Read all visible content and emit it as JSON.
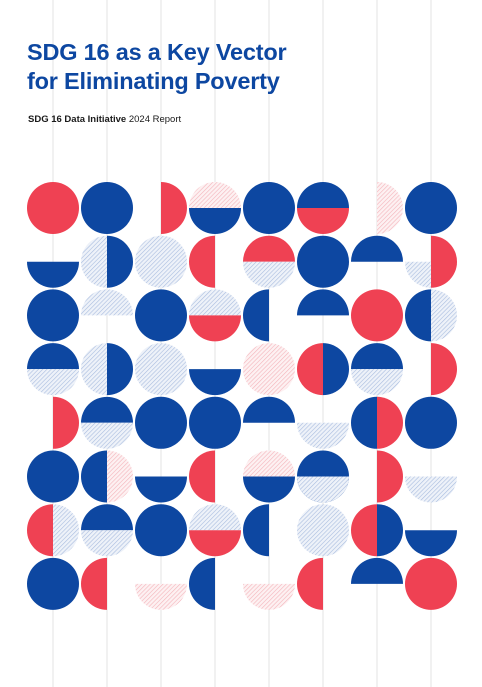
{
  "report": {
    "title_line1": "SDG 16 as a Key Vector",
    "title_line2": "for Eliminating Poverty",
    "initiative": "SDG 16 Data Initiative",
    "report_label": " 2024 Report"
  },
  "colors": {
    "blue": "#0d47a1",
    "red": "#ef4153",
    "light_blue": "#c9d5ea",
    "light_red": "#f6c3c8",
    "grid_line": "#dcdcdc"
  },
  "pattern_shapes": [
    "c R 0 0",
    "c B 1 0",
    "hr R 2 0",
    "t P 3 0",
    "b B 3 0",
    "c B 4 0",
    "t B 5 0",
    "b R 5 0",
    "hr P 6 0",
    "c B 7 0",
    "b B 0 1",
    "hl L 1 1",
    "hr B 1 1",
    "c L 2 1",
    "hl R 3 1",
    "t R 4 1",
    "b L 4 1",
    "c B 5 1",
    "t B 6 1",
    "b L 7 1",
    "hr R 7 1",
    "c B 0 2",
    "t L 1 2",
    "c B 2 2",
    "t L 3 2",
    "b R 3 2",
    "hl B 4 2",
    "t B 5 2",
    "c R 6 2",
    "hl B 7 2",
    "hr L 7 2",
    "t B 0 3",
    "b L 0 3",
    "hl L 1 3",
    "hr B 1 3",
    "c L 2 3",
    "b B 3 3",
    "c P 4 3",
    "hl R 5 3",
    "hr B 5 3",
    "t B 6 3",
    "b L 6 3",
    "hr R 7 3",
    "hr R 0 4",
    "t B 1 4",
    "b L 1 4",
    "c B 2 4",
    "c B 3 4",
    "t B 4 4",
    "b L 5 4",
    "hl B 6 4",
    "hr R 6 4",
    "c B 7 4",
    "c B 0 5",
    "hl B 1 5",
    "hr P 1 5",
    "b B 2 5",
    "hl R 3 5",
    "t P 4 5",
    "b B 4 5",
    "c B 5 5",
    "b L 5 5",
    "hr R 6 5",
    "b L 7 5",
    "hl R 0 6",
    "hr L 0 6",
    "t B 1 6",
    "b L 1 6",
    "c B 2 6",
    "t L 3 6",
    "b R 3 6",
    "hl B 4 6",
    "c L 5 6",
    "hl R 6 6",
    "hr B 6 6",
    "b B 7 6",
    "c B 0 7",
    "hl R 1 7",
    "b P 2 7",
    "hl B 3 7",
    "b P 4 7",
    "hl R 5 7",
    "t B 6 7",
    "c R 7 7"
  ]
}
